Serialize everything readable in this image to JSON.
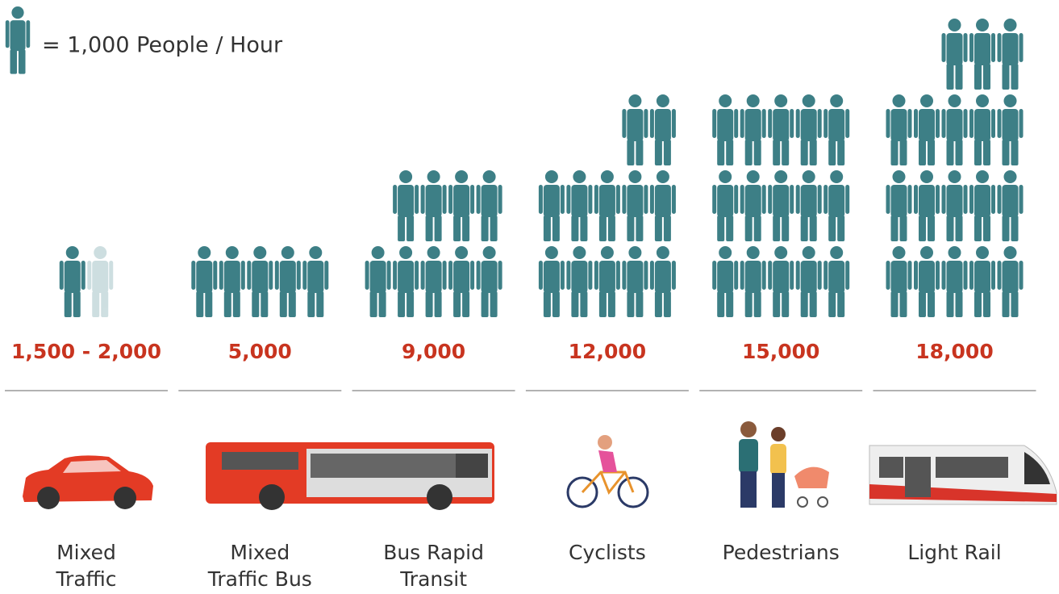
{
  "chart_data": {
    "type": "pictogram",
    "legend_label": "= 1,000 People / Hour",
    "unit": 1000,
    "categories": [
      "Mixed Traffic",
      "Mixed Traffic Bus",
      "Bus Rapid Transit",
      "Cyclists",
      "Pedestrians",
      "Light Rail"
    ],
    "values": [
      {
        "low": 1500,
        "high": 2000
      },
      5000,
      9000,
      12000,
      15000,
      18000
    ],
    "value_labels": [
      "1,500 - 2,000",
      "5,000",
      "9,000",
      "12,000",
      "15,000",
      "18,000"
    ],
    "icon_color": "#3d7f86",
    "label_color": "#c8341f"
  }
}
